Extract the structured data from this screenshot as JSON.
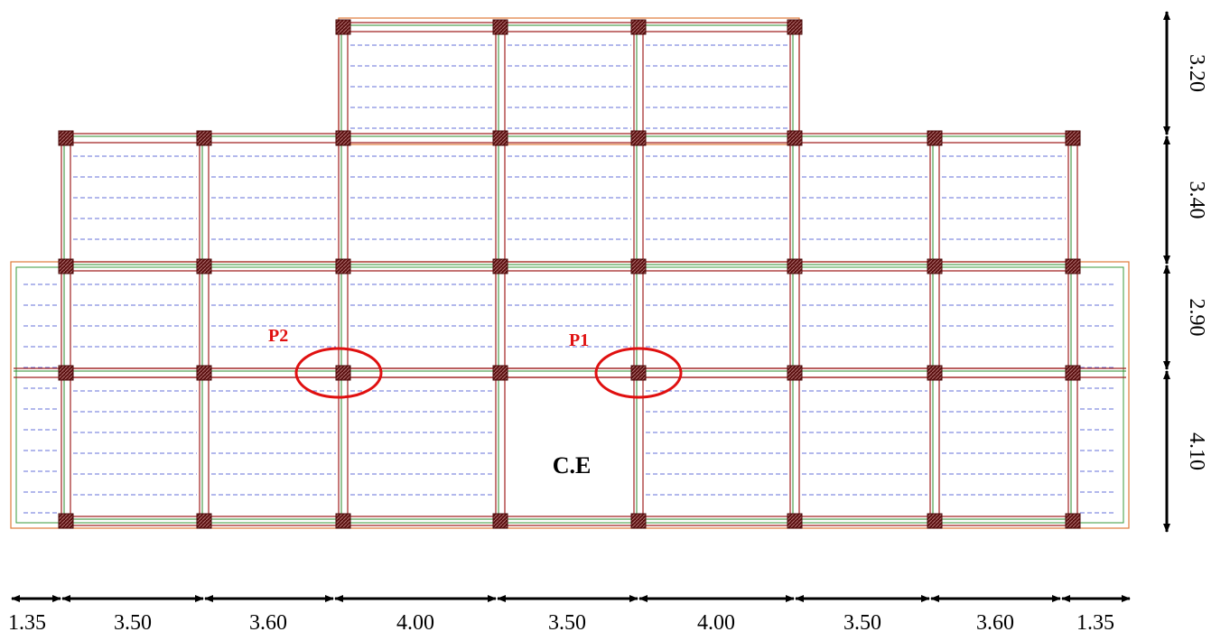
{
  "horizontal_dimensions": [
    "1.35",
    "3.50",
    "3.60",
    "4.00",
    "3.50",
    "4.00",
    "3.50",
    "3.60",
    "1.35"
  ],
  "vertical_dimensions": [
    "3.20",
    "3.40",
    "2.90",
    "4.10"
  ],
  "markers": [
    {
      "label": "P2"
    },
    {
      "label": "P1"
    }
  ],
  "core_label": "C.E"
}
